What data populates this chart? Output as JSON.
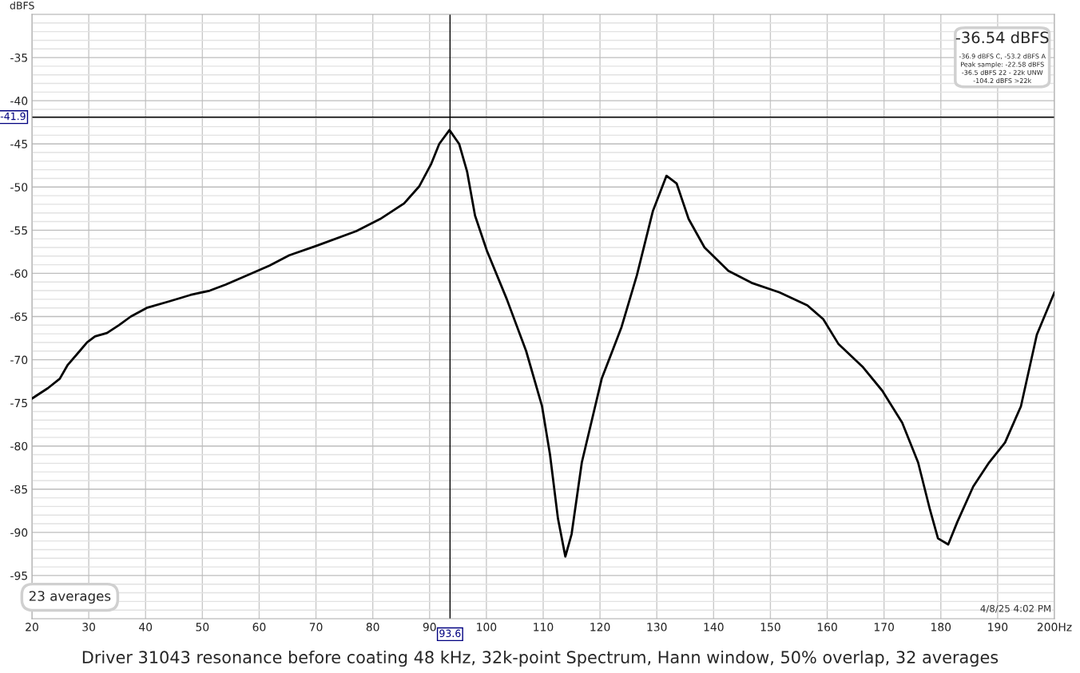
{
  "chart_data": {
    "type": "line",
    "title": "Driver 31043 resonance before coating 48 kHz, 32k-point Spectrum, Hann window, 50% overlap, 32 averages",
    "ylabel": "dBFS",
    "x": [
      20,
      22.8,
      24.9,
      26.3,
      28.4,
      29.7,
      31.1,
      33.2,
      35.3,
      37.4,
      40.2,
      44.4,
      47.9,
      51.3,
      54.1,
      57.6,
      61.8,
      65.3,
      70.1,
      77.1,
      81.3,
      85.5,
      88.2,
      90.3,
      91.7,
      93.5,
      95.2,
      96.6,
      98,
      100.1,
      103.6,
      107,
      109.8,
      111.2,
      112.6,
      113.9,
      115,
      116.8,
      120.3,
      123.8,
      126.5,
      129.3,
      131.7,
      133.5,
      135.6,
      138.4,
      142.6,
      146.7,
      151.6,
      156.5,
      159.3,
      162,
      166.2,
      169.7,
      173.2,
      176,
      178.1,
      179.5,
      181.3,
      182.9,
      185.7,
      188.5,
      191.3,
      194.1,
      196.9,
      200
    ],
    "series": [
      {
        "color": "#000000",
        "values": [
          -74.5,
          -73.3,
          -72.2,
          -70.6,
          -69,
          -68,
          -67.3,
          -66.9,
          -66,
          -65,
          -64,
          -63.2,
          -62.5,
          -62,
          -61.3,
          -60.3,
          -59.1,
          -57.9,
          -56.8,
          -55.1,
          -53.7,
          -51.9,
          -49.9,
          -47.3,
          -45,
          -43.4,
          -45,
          -48.2,
          -53.3,
          -57.4,
          -63,
          -69,
          -75.4,
          -81,
          -88.4,
          -92.8,
          -90.2,
          -81.9,
          -72.2,
          -66.2,
          -60.2,
          -52.8,
          -48.7,
          -49.6,
          -53.7,
          -57,
          -59.7,
          -61.1,
          -62.2,
          -63.7,
          -65.3,
          -68.2,
          -70.8,
          -73.6,
          -77.3,
          -81.9,
          -87.4,
          -90.7,
          -91.4,
          -88.8,
          -84.7,
          -81.9,
          -79.6,
          -75.4,
          -67.1,
          -62.2
        ]
      }
    ],
    "xlim": [
      20,
      200
    ],
    "xticks": [
      20,
      30,
      40,
      50,
      60,
      70,
      80,
      90,
      100,
      110,
      120,
      130,
      140,
      150,
      160,
      170,
      180,
      190,
      {
        "value": 200,
        "label": "200Hz"
      }
    ],
    "ylim": [
      -100,
      -30
    ],
    "yticks": [
      {
        "value": -31,
        "label": null
      },
      {
        "value": -32,
        "label": null
      },
      {
        "value": -33,
        "label": null
      },
      {
        "value": -34,
        "label": null
      },
      -35,
      {
        "value": -36,
        "label": null
      },
      {
        "value": -37,
        "label": null
      },
      {
        "value": -38,
        "label": null
      },
      {
        "value": -39,
        "label": null
      },
      -40,
      {
        "value": -41,
        "label": null
      },
      {
        "value": -42,
        "label": null
      },
      {
        "value": -43,
        "label": null
      },
      {
        "value": -44,
        "label": null
      },
      -45,
      {
        "value": -46,
        "label": null
      },
      {
        "value": -47,
        "label": null
      },
      {
        "value": -48,
        "label": null
      },
      {
        "value": -49,
        "label": null
      },
      -50,
      {
        "value": -51,
        "label": null
      },
      {
        "value": -52,
        "label": null
      },
      {
        "value": -53,
        "label": null
      },
      {
        "value": -54,
        "label": null
      },
      -55,
      {
        "value": -56,
        "label": null
      },
      {
        "value": -57,
        "label": null
      },
      {
        "value": -58,
        "label": null
      },
      {
        "value": -59,
        "label": null
      },
      -60,
      {
        "value": -61,
        "label": null
      },
      {
        "value": -62,
        "label": null
      },
      {
        "value": -63,
        "label": null
      },
      {
        "value": -64,
        "label": null
      },
      -65,
      {
        "value": -66,
        "label": null
      },
      {
        "value": -67,
        "label": null
      },
      {
        "value": -68,
        "label": null
      },
      {
        "value": -69,
        "label": null
      },
      -70,
      {
        "value": -71,
        "label": null
      },
      {
        "value": -72,
        "label": null
      },
      {
        "value": -73,
        "label": null
      },
      {
        "value": -74,
        "label": null
      },
      -75,
      {
        "value": -76,
        "label": null
      },
      {
        "value": -77,
        "label": null
      },
      {
        "value": -78,
        "label": null
      },
      {
        "value": -79,
        "label": null
      },
      -80,
      {
        "value": -81,
        "label": null
      },
      {
        "value": -82,
        "label": null
      },
      {
        "value": -83,
        "label": null
      },
      {
        "value": -84,
        "label": null
      },
      -85,
      {
        "value": -86,
        "label": null
      },
      {
        "value": -87,
        "label": null
      },
      {
        "value": -88,
        "label": null
      },
      {
        "value": -89,
        "label": null
      },
      -90,
      {
        "value": -91,
        "label": null
      },
      {
        "value": -92,
        "label": null
      },
      {
        "value": -93,
        "label": null
      },
      {
        "value": -94,
        "label": null
      },
      -95,
      {
        "value": -96,
        "label": null
      },
      {
        "value": -97,
        "label": null
      },
      {
        "value": -98,
        "label": null
      },
      {
        "value": -99,
        "label": null
      }
    ],
    "ref_lines": [
      {
        "axis": "x",
        "value": 93.6,
        "label": "93.6",
        "color": "#000000"
      },
      {
        "axis": "y",
        "value": -41.9,
        "label": "-41.9",
        "color": "#000000"
      }
    ],
    "annotations": [
      "-36.54 dBFS",
      "-36.9 dBFS C, -53.2 dBFS A",
      "Peak sample: -22.58 dBFS",
      "-36.5 dBFS 22 - 22k UNW",
      "-104.2 dBFS >22k",
      "23 averages",
      "4/8/25 4:02 PM"
    ],
    "grid": true,
    "legend": false,
    "marker": "none",
    "line_style": "solid"
  }
}
